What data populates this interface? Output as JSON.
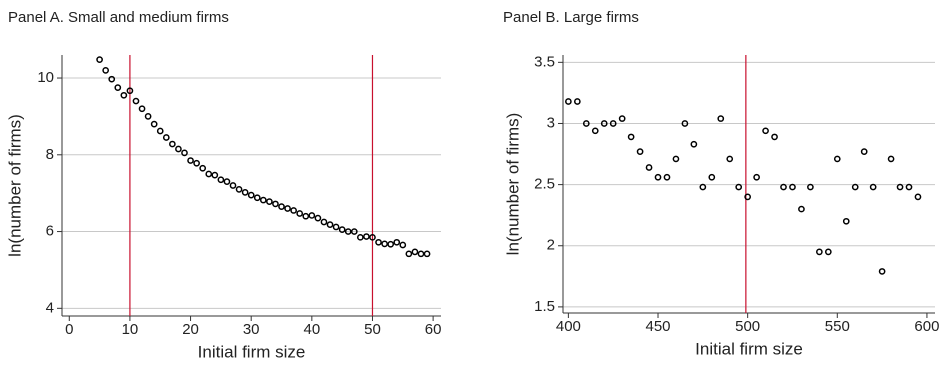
{
  "chart_data": [
    {
      "type": "scatter",
      "title": "Panel A. Small and medium firms",
      "x_label": "Initial firm size",
      "y_label": "ln(number of firms)",
      "x": [
        5,
        6,
        7,
        8,
        9,
        10,
        11,
        12,
        13,
        14,
        15,
        16,
        17,
        18,
        19,
        20,
        21,
        22,
        23,
        24,
        25,
        26,
        27,
        28,
        29,
        30,
        31,
        32,
        33,
        34,
        35,
        36,
        37,
        38,
        39,
        40,
        41,
        42,
        43,
        44,
        45,
        46,
        47,
        48,
        49,
        50,
        51,
        52,
        53,
        54,
        55,
        56,
        57,
        58,
        59
      ],
      "series": [
        {
          "color": "#000000",
          "values": [
            10.48,
            10.2,
            9.97,
            9.75,
            9.55,
            9.67,
            9.4,
            9.2,
            9.0,
            8.8,
            8.62,
            8.45,
            8.28,
            8.15,
            8.05,
            7.85,
            7.78,
            7.65,
            7.5,
            7.47,
            7.35,
            7.3,
            7.2,
            7.1,
            7.02,
            6.95,
            6.88,
            6.82,
            6.78,
            6.72,
            6.65,
            6.6,
            6.55,
            6.47,
            6.4,
            6.42,
            6.35,
            6.25,
            6.18,
            6.12,
            6.05,
            6.0,
            6.0,
            5.85,
            5.87,
            5.85,
            5.72,
            5.68,
            5.67,
            5.72,
            5.65,
            5.42,
            5.47,
            5.42,
            5.42
          ]
        }
      ],
      "vlines": [
        10,
        50
      ],
      "vline_color": "#c8102e",
      "xlim": [
        -1.2,
        61.3
      ],
      "xticks": [
        0,
        10,
        20,
        30,
        40,
        50,
        60
      ],
      "ylim": [
        3.8,
        10.6
      ],
      "yticks": [
        4,
        6,
        8,
        10
      ],
      "grid": true
    },
    {
      "type": "scatter",
      "title": "Panel B. Large firms",
      "x_label": "Initial firm size",
      "y_label": "ln(number of firms)",
      "x": [
        400,
        405,
        410,
        415,
        420,
        425,
        430,
        435,
        440,
        445,
        450,
        455,
        460,
        465,
        470,
        475,
        480,
        485,
        490,
        495,
        500,
        505,
        510,
        515,
        520,
        525,
        530,
        535,
        540,
        545,
        550,
        555,
        560,
        565,
        570,
        575,
        580,
        585,
        590,
        595
      ],
      "series": [
        {
          "color": "#000000",
          "values": [
            3.18,
            3.18,
            3.0,
            2.94,
            3.0,
            3.0,
            3.04,
            2.89,
            2.77,
            2.64,
            2.56,
            2.56,
            2.71,
            3.0,
            2.83,
            2.48,
            2.56,
            3.04,
            2.71,
            2.48,
            2.4,
            2.56,
            2.94,
            2.89,
            2.48,
            2.48,
            2.3,
            2.48,
            1.95,
            1.95,
            2.71,
            2.2,
            2.48,
            2.77,
            2.48,
            1.79,
            2.71,
            2.48,
            2.48,
            2.4
          ]
        }
      ],
      "vlines": [
        499
      ],
      "vline_color": "#c8102e",
      "xlim": [
        397,
        604.5
      ],
      "xticks": [
        400,
        450,
        500,
        550,
        600
      ],
      "ylim": [
        1.45,
        3.56
      ],
      "yticks": [
        1.5,
        2,
        2.5,
        3,
        3.5
      ],
      "grid": true
    }
  ]
}
